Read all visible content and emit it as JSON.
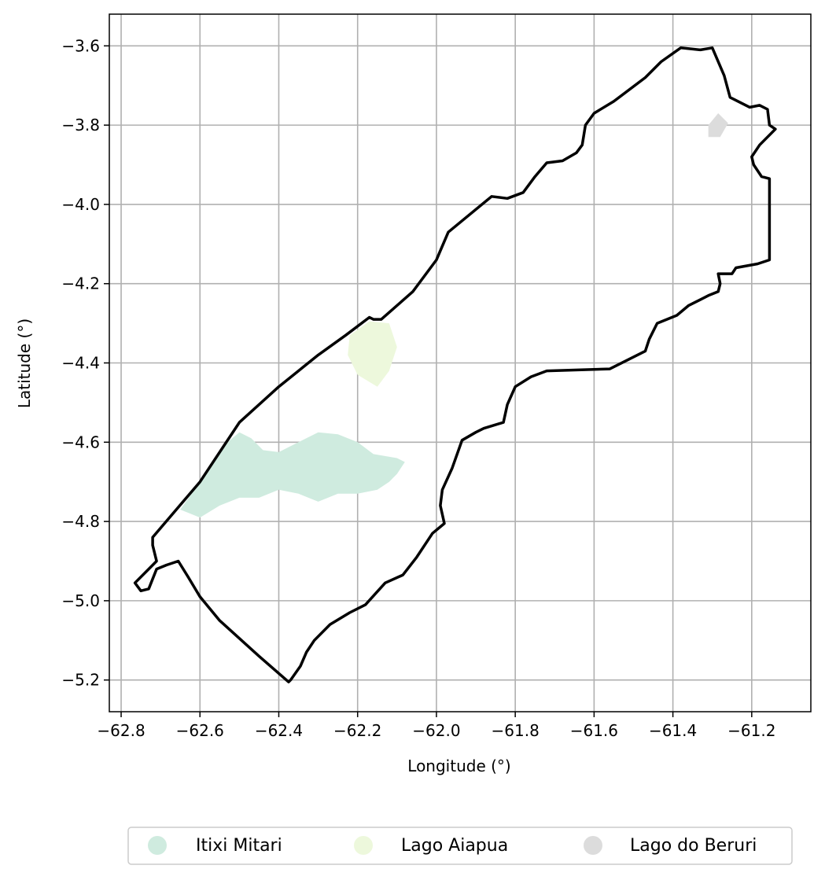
{
  "chart_data": {
    "type": "map",
    "xlabel": "Longitude (°)",
    "ylabel": "Latitude (°)",
    "xlim": [
      -62.83,
      -61.05
    ],
    "ylim": [
      -5.28,
      -3.52
    ],
    "grid": true,
    "xticks": [
      -62.8,
      -62.6,
      -62.4,
      -62.2,
      -62.0,
      -61.8,
      -61.6,
      -61.4,
      -61.2
    ],
    "yticks": [
      -3.6,
      -3.8,
      -4.0,
      -4.2,
      -4.4,
      -4.6,
      -4.8,
      -5.0,
      -5.2
    ],
    "xtick_labels": [
      "−62.8",
      "−62.6",
      "−62.4",
      "−62.2",
      "−62.0",
      "−61.8",
      "−61.6",
      "−61.4",
      "−61.2"
    ],
    "ytick_labels": [
      "−3.6",
      "−3.8",
      "−4.0",
      "−4.2",
      "−4.4",
      "−4.6",
      "−4.8",
      "−5.0",
      "−5.2"
    ],
    "legend_position": "bottom-center",
    "boundary": {
      "color": "#000000",
      "coords": [
        [
          -62.72,
          -4.84
        ],
        [
          -62.6,
          -4.7
        ],
        [
          -62.5,
          -4.55
        ],
        [
          -62.4,
          -4.46
        ],
        [
          -62.3,
          -4.38
        ],
        [
          -62.23,
          -4.33
        ],
        [
          -62.17,
          -4.285
        ],
        [
          -62.16,
          -4.29
        ],
        [
          -62.14,
          -4.29
        ],
        [
          -62.06,
          -4.22
        ],
        [
          -62.0,
          -4.14
        ],
        [
          -61.97,
          -4.07
        ],
        [
          -61.86,
          -3.98
        ],
        [
          -61.82,
          -3.985
        ],
        [
          -61.78,
          -3.97
        ],
        [
          -61.75,
          -3.93
        ],
        [
          -61.72,
          -3.895
        ],
        [
          -61.68,
          -3.89
        ],
        [
          -61.645,
          -3.87
        ],
        [
          -61.63,
          -3.85
        ],
        [
          -61.622,
          -3.8
        ],
        [
          -61.6,
          -3.77
        ],
        [
          -61.55,
          -3.74
        ],
        [
          -61.47,
          -3.68
        ],
        [
          -61.43,
          -3.64
        ],
        [
          -61.38,
          -3.605
        ],
        [
          -61.33,
          -3.61
        ],
        [
          -61.3,
          -3.605
        ],
        [
          -61.27,
          -3.675
        ],
        [
          -61.255,
          -3.73
        ],
        [
          -61.205,
          -3.755
        ],
        [
          -61.18,
          -3.75
        ],
        [
          -61.16,
          -3.76
        ],
        [
          -61.155,
          -3.8
        ],
        [
          -61.14,
          -3.81
        ],
        [
          -61.18,
          -3.85
        ],
        [
          -61.2,
          -3.88
        ],
        [
          -61.195,
          -3.9
        ],
        [
          -61.175,
          -3.93
        ],
        [
          -61.155,
          -3.935
        ],
        [
          -61.155,
          -4.14
        ],
        [
          -61.185,
          -4.15
        ],
        [
          -61.24,
          -4.16
        ],
        [
          -61.25,
          -4.175
        ],
        [
          -61.285,
          -4.175
        ],
        [
          -61.28,
          -4.2
        ],
        [
          -61.285,
          -4.22
        ],
        [
          -61.31,
          -4.23
        ],
        [
          -61.33,
          -4.24
        ],
        [
          -61.36,
          -4.255
        ],
        [
          -61.39,
          -4.28
        ],
        [
          -61.44,
          -4.3
        ],
        [
          -61.46,
          -4.34
        ],
        [
          -61.47,
          -4.37
        ],
        [
          -61.56,
          -4.415
        ],
        [
          -61.72,
          -4.42
        ],
        [
          -61.76,
          -4.435
        ],
        [
          -61.8,
          -4.46
        ],
        [
          -61.82,
          -4.505
        ],
        [
          -61.83,
          -4.55
        ],
        [
          -61.88,
          -4.565
        ],
        [
          -61.9,
          -4.575
        ],
        [
          -61.935,
          -4.595
        ],
        [
          -61.96,
          -4.665
        ],
        [
          -61.985,
          -4.72
        ],
        [
          -61.99,
          -4.76
        ],
        [
          -61.98,
          -4.805
        ],
        [
          -62.01,
          -4.83
        ],
        [
          -62.05,
          -4.89
        ],
        [
          -62.085,
          -4.935
        ],
        [
          -62.13,
          -4.955
        ],
        [
          -62.18,
          -5.01
        ],
        [
          -62.22,
          -5.03
        ],
        [
          -62.27,
          -5.06
        ],
        [
          -62.31,
          -5.1
        ],
        [
          -62.33,
          -5.13
        ],
        [
          -62.345,
          -5.165
        ],
        [
          -62.37,
          -5.2
        ],
        [
          -62.375,
          -5.205
        ],
        [
          -62.45,
          -5.14
        ],
        [
          -62.55,
          -5.05
        ],
        [
          -62.6,
          -4.99
        ],
        [
          -62.63,
          -4.94
        ],
        [
          -62.655,
          -4.9
        ],
        [
          -62.685,
          -4.91
        ],
        [
          -62.71,
          -4.92
        ],
        [
          -62.73,
          -4.97
        ],
        [
          -62.75,
          -4.975
        ],
        [
          -62.765,
          -4.955
        ],
        [
          -62.735,
          -4.925
        ],
        [
          -62.71,
          -4.9
        ],
        [
          -62.72,
          -4.86
        ],
        [
          -62.72,
          -4.84
        ]
      ]
    },
    "series": [
      {
        "name": "Itixi Mitari",
        "color": "#cfebdf",
        "coords": [
          [
            -62.65,
            -4.77
          ],
          [
            -62.6,
            -4.7
          ],
          [
            -62.53,
            -4.6
          ],
          [
            -62.5,
            -4.575
          ],
          [
            -62.47,
            -4.59
          ],
          [
            -62.44,
            -4.62
          ],
          [
            -62.4,
            -4.625
          ],
          [
            -62.35,
            -4.6
          ],
          [
            -62.3,
            -4.575
          ],
          [
            -62.25,
            -4.58
          ],
          [
            -62.2,
            -4.6
          ],
          [
            -62.16,
            -4.63
          ],
          [
            -62.1,
            -4.64
          ],
          [
            -62.08,
            -4.65
          ],
          [
            -62.1,
            -4.68
          ],
          [
            -62.12,
            -4.7
          ],
          [
            -62.15,
            -4.72
          ],
          [
            -62.2,
            -4.73
          ],
          [
            -62.25,
            -4.73
          ],
          [
            -62.3,
            -4.75
          ],
          [
            -62.35,
            -4.73
          ],
          [
            -62.4,
            -4.72
          ],
          [
            -62.45,
            -4.74
          ],
          [
            -62.5,
            -4.74
          ],
          [
            -62.55,
            -4.76
          ],
          [
            -62.6,
            -4.79
          ],
          [
            -62.65,
            -4.77
          ]
        ]
      },
      {
        "name": "Lago Aiapua",
        "color": "#edf8dc",
        "coords": [
          [
            -62.22,
            -4.33
          ],
          [
            -62.17,
            -4.295
          ],
          [
            -62.12,
            -4.3
          ],
          [
            -62.1,
            -4.36
          ],
          [
            -62.12,
            -4.42
          ],
          [
            -62.15,
            -4.46
          ],
          [
            -62.2,
            -4.43
          ],
          [
            -62.225,
            -4.38
          ],
          [
            -62.22,
            -4.33
          ]
        ]
      },
      {
        "name": "Lago do Beruri",
        "color": "#dcdcdc",
        "coords": [
          [
            -61.31,
            -3.8
          ],
          [
            -61.285,
            -3.77
          ],
          [
            -61.26,
            -3.795
          ],
          [
            -61.28,
            -3.83
          ],
          [
            -61.31,
            -3.83
          ],
          [
            -61.31,
            -3.8
          ]
        ]
      }
    ]
  }
}
